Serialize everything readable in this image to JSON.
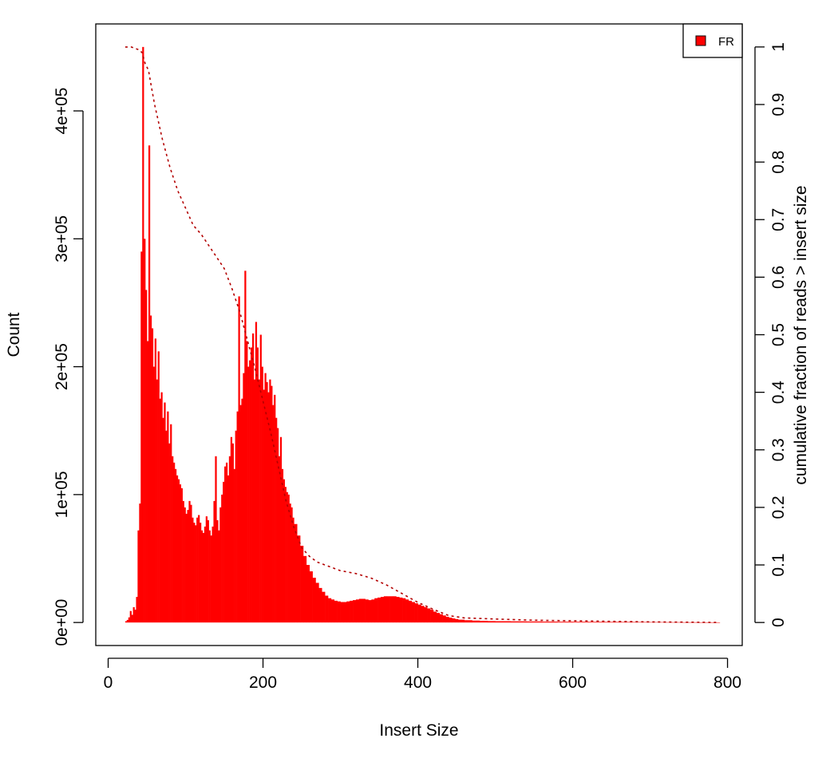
{
  "chart_data": {
    "type": "bar",
    "xlabel": "Insert Size",
    "ylabel": "Count",
    "y2label": "cumulative fraction of reads > insert size",
    "xlim": [
      -16,
      819
    ],
    "ylim": [
      -18000,
      468000
    ],
    "y2lim": [
      -0.04,
      1.04
    ],
    "x_ticks": [
      0,
      200,
      400,
      600,
      800
    ],
    "x_tick_labels": [
      "0",
      "200",
      "400",
      "600",
      "800"
    ],
    "y_ticks": [
      0,
      100000,
      200000,
      300000,
      400000
    ],
    "y_tick_labels": [
      "0e+00",
      "1e+05",
      "2e+05",
      "3e+05",
      "4e+05"
    ],
    "y2_ticks": [
      0,
      0.1,
      0.2,
      0.3,
      0.4,
      0.5,
      0.6,
      0.7,
      0.8,
      0.9,
      1
    ],
    "y2_tick_labels": [
      "0",
      "0.1",
      "0.2",
      "0.3",
      "0.4",
      "0.5",
      "0.6",
      "0.7",
      "0.8",
      "0.9",
      "1"
    ],
    "legend": {
      "position": "top-right",
      "entries": [
        {
          "name": "FR",
          "color": "#ff0000"
        }
      ]
    },
    "colors": {
      "bars": "#ff0000",
      "cumulative": "#b30000"
    },
    "series": [
      {
        "name": "FR",
        "kind": "bar",
        "points": [
          [
            22,
            1000
          ],
          [
            24,
            2000
          ],
          [
            26,
            4000
          ],
          [
            28,
            9000
          ],
          [
            30,
            6000
          ],
          [
            32,
            12000
          ],
          [
            34,
            10000
          ],
          [
            36,
            20000
          ],
          [
            38,
            72000
          ],
          [
            40,
            93000
          ],
          [
            42,
            290000
          ],
          [
            44,
            450000
          ],
          [
            46,
            300000
          ],
          [
            48,
            260000
          ],
          [
            50,
            220000
          ],
          [
            52,
            373000
          ],
          [
            54,
            240000
          ],
          [
            56,
            230000
          ],
          [
            58,
            200000
          ],
          [
            60,
            222000
          ],
          [
            62,
            190000
          ],
          [
            64,
            212000
          ],
          [
            66,
            175000
          ],
          [
            68,
            180000
          ],
          [
            70,
            160000
          ],
          [
            72,
            172000
          ],
          [
            74,
            150000
          ],
          [
            76,
            165000
          ],
          [
            78,
            140000
          ],
          [
            80,
            155000
          ],
          [
            82,
            130000
          ],
          [
            84,
            125000
          ],
          [
            86,
            120000
          ],
          [
            88,
            115000
          ],
          [
            90,
            112000
          ],
          [
            92,
            108000
          ],
          [
            94,
            105000
          ],
          [
            96,
            95000
          ],
          [
            98,
            90000
          ],
          [
            100,
            85000
          ],
          [
            102,
            88000
          ],
          [
            104,
            95000
          ],
          [
            106,
            92000
          ],
          [
            108,
            82000
          ],
          [
            110,
            78000
          ],
          [
            112,
            76000
          ],
          [
            114,
            82000
          ],
          [
            116,
            84000
          ],
          [
            118,
            78000
          ],
          [
            120,
            72000
          ],
          [
            122,
            70000
          ],
          [
            124,
            75000
          ],
          [
            126,
            83000
          ],
          [
            128,
            80000
          ],
          [
            130,
            72000
          ],
          [
            132,
            68000
          ],
          [
            134,
            75000
          ],
          [
            136,
            95000
          ],
          [
            138,
            130000
          ],
          [
            140,
            80000
          ],
          [
            142,
            72000
          ],
          [
            144,
            90000
          ],
          [
            146,
            100000
          ],
          [
            148,
            110000
          ],
          [
            150,
            122000
          ],
          [
            152,
            125000
          ],
          [
            154,
            115000
          ],
          [
            156,
            130000
          ],
          [
            158,
            145000
          ],
          [
            160,
            140000
          ],
          [
            162,
            120000
          ],
          [
            164,
            150000
          ],
          [
            166,
            165000
          ],
          [
            168,
            255000
          ],
          [
            170,
            170000
          ],
          [
            172,
            175000
          ],
          [
            174,
            195000
          ],
          [
            176,
            275000
          ],
          [
            178,
            220000
          ],
          [
            180,
            200000
          ],
          [
            182,
            205000
          ],
          [
            184,
            215000
          ],
          [
            186,
            226000
          ],
          [
            188,
            190000
          ],
          [
            190,
            235000
          ],
          [
            192,
            215000
          ],
          [
            194,
            190000
          ],
          [
            196,
            225000
          ],
          [
            198,
            200000
          ],
          [
            200,
            182000
          ],
          [
            202,
            195000
          ],
          [
            204,
            188000
          ],
          [
            206,
            180000
          ],
          [
            208,
            190000
          ],
          [
            210,
            185000
          ],
          [
            212,
            170000
          ],
          [
            214,
            178000
          ],
          [
            216,
            160000
          ],
          [
            218,
            152000
          ],
          [
            220,
            130000
          ],
          [
            222,
            145000
          ],
          [
            224,
            120000
          ],
          [
            226,
            112000
          ],
          [
            228,
            106000
          ],
          [
            230,
            102000
          ],
          [
            232,
            100000
          ],
          [
            234,
            93000
          ],
          [
            236,
            90000
          ],
          [
            238,
            82000
          ],
          [
            240,
            77000
          ],
          [
            244,
            68000
          ],
          [
            248,
            60000
          ],
          [
            252,
            52000
          ],
          [
            256,
            45000
          ],
          [
            260,
            40000
          ],
          [
            264,
            35000
          ],
          [
            268,
            31000
          ],
          [
            272,
            27000
          ],
          [
            276,
            24000
          ],
          [
            280,
            21000
          ],
          [
            284,
            19000
          ],
          [
            288,
            18000
          ],
          [
            292,
            17000
          ],
          [
            296,
            16500
          ],
          [
            300,
            16000
          ],
          [
            304,
            16000
          ],
          [
            308,
            16500
          ],
          [
            312,
            17000
          ],
          [
            316,
            17500
          ],
          [
            320,
            18000
          ],
          [
            324,
            18500
          ],
          [
            328,
            18500
          ],
          [
            332,
            18000
          ],
          [
            336,
            17500
          ],
          [
            340,
            18000
          ],
          [
            344,
            19000
          ],
          [
            348,
            19500
          ],
          [
            352,
            20000
          ],
          [
            356,
            20500
          ],
          [
            360,
            20500
          ],
          [
            364,
            20500
          ],
          [
            368,
            20500
          ],
          [
            372,
            20000
          ],
          [
            376,
            19500
          ],
          [
            380,
            19000
          ],
          [
            384,
            18000
          ],
          [
            388,
            17000
          ],
          [
            392,
            16000
          ],
          [
            396,
            15000
          ],
          [
            400,
            14000
          ],
          [
            404,
            13000
          ],
          [
            408,
            12000
          ],
          [
            412,
            11000
          ],
          [
            416,
            10000
          ],
          [
            420,
            8500
          ],
          [
            424,
            7500
          ],
          [
            428,
            6500
          ],
          [
            432,
            5500
          ],
          [
            436,
            4500
          ],
          [
            440,
            3800
          ],
          [
            444,
            3200
          ],
          [
            448,
            2700
          ],
          [
            452,
            2200
          ],
          [
            460,
            1800
          ],
          [
            470,
            1500
          ],
          [
            480,
            1300
          ],
          [
            490,
            1100
          ],
          [
            500,
            1000
          ],
          [
            520,
            900
          ],
          [
            540,
            800
          ],
          [
            560,
            700
          ],
          [
            580,
            600
          ],
          [
            600,
            550
          ],
          [
            620,
            500
          ],
          [
            640,
            450
          ],
          [
            660,
            400
          ],
          [
            680,
            350
          ],
          [
            700,
            300
          ],
          [
            720,
            250
          ],
          [
            740,
            200
          ],
          [
            760,
            150
          ],
          [
            780,
            120
          ],
          [
            788,
            100
          ]
        ]
      },
      {
        "name": "cumulative",
        "kind": "line",
        "axis": "right",
        "style": "dashed",
        "points": [
          [
            22,
            1.0
          ],
          [
            30,
            1.0
          ],
          [
            40,
            0.995
          ],
          [
            44,
            0.99
          ],
          [
            48,
            0.97
          ],
          [
            52,
            0.96
          ],
          [
            56,
            0.93
          ],
          [
            60,
            0.9
          ],
          [
            70,
            0.84
          ],
          [
            80,
            0.79
          ],
          [
            90,
            0.75
          ],
          [
            100,
            0.72
          ],
          [
            110,
            0.69
          ],
          [
            120,
            0.675
          ],
          [
            130,
            0.655
          ],
          [
            140,
            0.635
          ],
          [
            150,
            0.615
          ],
          [
            160,
            0.58
          ],
          [
            170,
            0.54
          ],
          [
            180,
            0.49
          ],
          [
            190,
            0.44
          ],
          [
            200,
            0.385
          ],
          [
            210,
            0.33
          ],
          [
            220,
            0.27
          ],
          [
            230,
            0.21
          ],
          [
            240,
            0.165
          ],
          [
            250,
            0.13
          ],
          [
            260,
            0.115
          ],
          [
            270,
            0.105
          ],
          [
            280,
            0.1
          ],
          [
            300,
            0.09
          ],
          [
            320,
            0.085
          ],
          [
            340,
            0.077
          ],
          [
            360,
            0.065
          ],
          [
            380,
            0.05
          ],
          [
            400,
            0.035
          ],
          [
            420,
            0.023
          ],
          [
            440,
            0.012
          ],
          [
            460,
            0.008
          ],
          [
            500,
            0.006
          ],
          [
            550,
            0.004
          ],
          [
            600,
            0.003
          ],
          [
            650,
            0.002
          ],
          [
            700,
            0.001
          ],
          [
            750,
            0.0005
          ],
          [
            788,
            0.0
          ]
        ]
      }
    ]
  }
}
